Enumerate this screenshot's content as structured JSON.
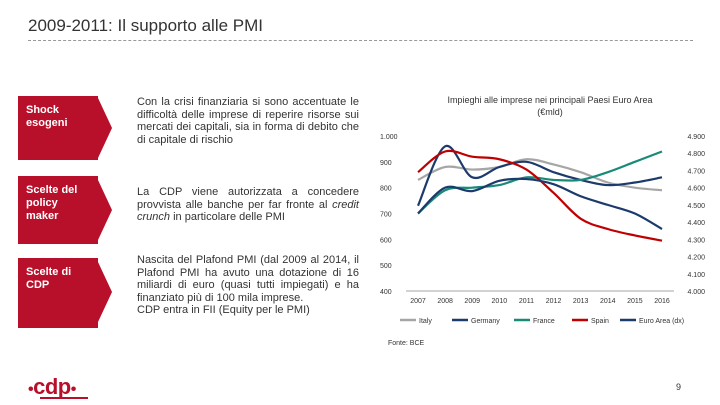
{
  "header": {
    "title": "2009-2011: Il supporto alle PMI"
  },
  "rows": [
    {
      "label": "Shock esogeni",
      "text": "Con la crisi finanziaria si sono accentuate le difficoltà delle imprese di reperire risorse sui mercati dei capitali, sia in forma di debito che di capitale di rischio"
    },
    {
      "label": "Scelte del policy maker",
      "text_before": "La CDP viene autorizzata a concedere provvista alle banche per far fronte al ",
      "text_italic": "credit crunch",
      "text_after": " in particolare delle PMI"
    },
    {
      "label": "Scelte di CDP",
      "text": "Nascita del Plafond PMI (dal 2009 al 2014, il Plafond PMI ha avuto una dotazione di 16 miliardi di euro (quasi tutti impiegati) e ha finanziato più di 100 mila imprese.\nCDP entra in FII (Equity per le PMI)"
    }
  ],
  "chart_data": {
    "type": "line",
    "title": "Impieghi alle imprese nei principali Paesi Euro Area",
    "subtitle": "(€mld)",
    "x": [
      "2007",
      "2008",
      "2009",
      "2010",
      "2011",
      "2012",
      "2013",
      "2014",
      "2015",
      "2016"
    ],
    "y_left": {
      "ticks": [
        "400",
        "500",
        "600",
        "700",
        "800",
        "900",
        "1.000"
      ],
      "ylim": [
        400,
        1000
      ]
    },
    "y_right": {
      "ticks": [
        "4.000",
        "4.100",
        "4.200",
        "4.300",
        "4.400",
        "4.500",
        "4.600",
        "4.700",
        "4.800",
        "4.900"
      ],
      "ylim": [
        4000,
        4900
      ]
    },
    "series": [
      {
        "name": "Italy",
        "axis": "left",
        "color": "#a6a6a6",
        "values": [
          830,
          880,
          870,
          880,
          910,
          890,
          860,
          820,
          800,
          790
        ]
      },
      {
        "name": "Germany",
        "axis": "left",
        "color": "#1c3a6b",
        "values": [
          730,
          960,
          840,
          880,
          900,
          860,
          830,
          810,
          820,
          840
        ]
      },
      {
        "name": "France",
        "axis": "left",
        "color": "#1a8a78",
        "values": [
          700,
          790,
          800,
          810,
          840,
          830,
          830,
          860,
          900,
          940
        ]
      },
      {
        "name": "Spain",
        "axis": "left",
        "color": "#c00000",
        "values": [
          860,
          940,
          920,
          910,
          870,
          780,
          680,
          640,
          615,
          595
        ]
      },
      {
        "name": "Euro Area (dx)",
        "axis": "right",
        "color": "#1c3a6b",
        "values": [
          4450,
          4600,
          4580,
          4640,
          4650,
          4620,
          4550,
          4500,
          4450,
          4360
        ]
      }
    ],
    "source": "Fonte: BCE"
  },
  "footer": {
    "logo": "cdp",
    "page": "9"
  }
}
